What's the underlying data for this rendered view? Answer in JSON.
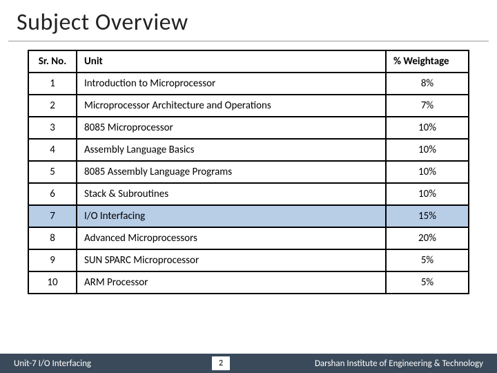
{
  "title": "Subject Overview",
  "table": {
    "columns": {
      "sr": "Sr. No.",
      "unit": "Unit",
      "wt": "% Weightage"
    },
    "rows": [
      {
        "sr": "1",
        "unit": "Introduction to Microprocessor",
        "wt": "8%",
        "highlight": false
      },
      {
        "sr": "2",
        "unit": "Microprocessor Architecture and Operations",
        "wt": "7%",
        "highlight": false
      },
      {
        "sr": "3",
        "unit": "8085 Microprocessor",
        "wt": "10%",
        "highlight": false
      },
      {
        "sr": "4",
        "unit": "Assembly Language Basics",
        "wt": "10%",
        "highlight": false
      },
      {
        "sr": "5",
        "unit": "8085 Assembly Language Programs",
        "wt": "10%",
        "highlight": false
      },
      {
        "sr": "6",
        "unit": "Stack & Subroutines",
        "wt": "10%",
        "highlight": false
      },
      {
        "sr": "7",
        "unit": "I/O Interfacing",
        "wt": "15%",
        "highlight": true
      },
      {
        "sr": "8",
        "unit": "Advanced Microprocessors",
        "wt": "20%",
        "highlight": false
      },
      {
        "sr": "9",
        "unit": "SUN SPARC Microprocessor",
        "wt": "5%",
        "highlight": false
      },
      {
        "sr": "10",
        "unit": "ARM Processor",
        "wt": "5%",
        "highlight": false
      }
    ],
    "highlight_bg": "#b8cde6",
    "border_color": "#000000",
    "header_fontsize": 15,
    "cell_fontsize": 15,
    "col_widths": {
      "sr": 70,
      "unit": "auto",
      "wt": 120
    }
  },
  "footer": {
    "left": "Unit-7 I/O Interfacing",
    "page": "2",
    "right": "Darshan Institute of Engineering & Technology",
    "bg": "#3a4a5a",
    "text_color": "#ffffff"
  },
  "colors": {
    "title": "#222222",
    "background": "#ffffff",
    "underline": "#999999"
  }
}
